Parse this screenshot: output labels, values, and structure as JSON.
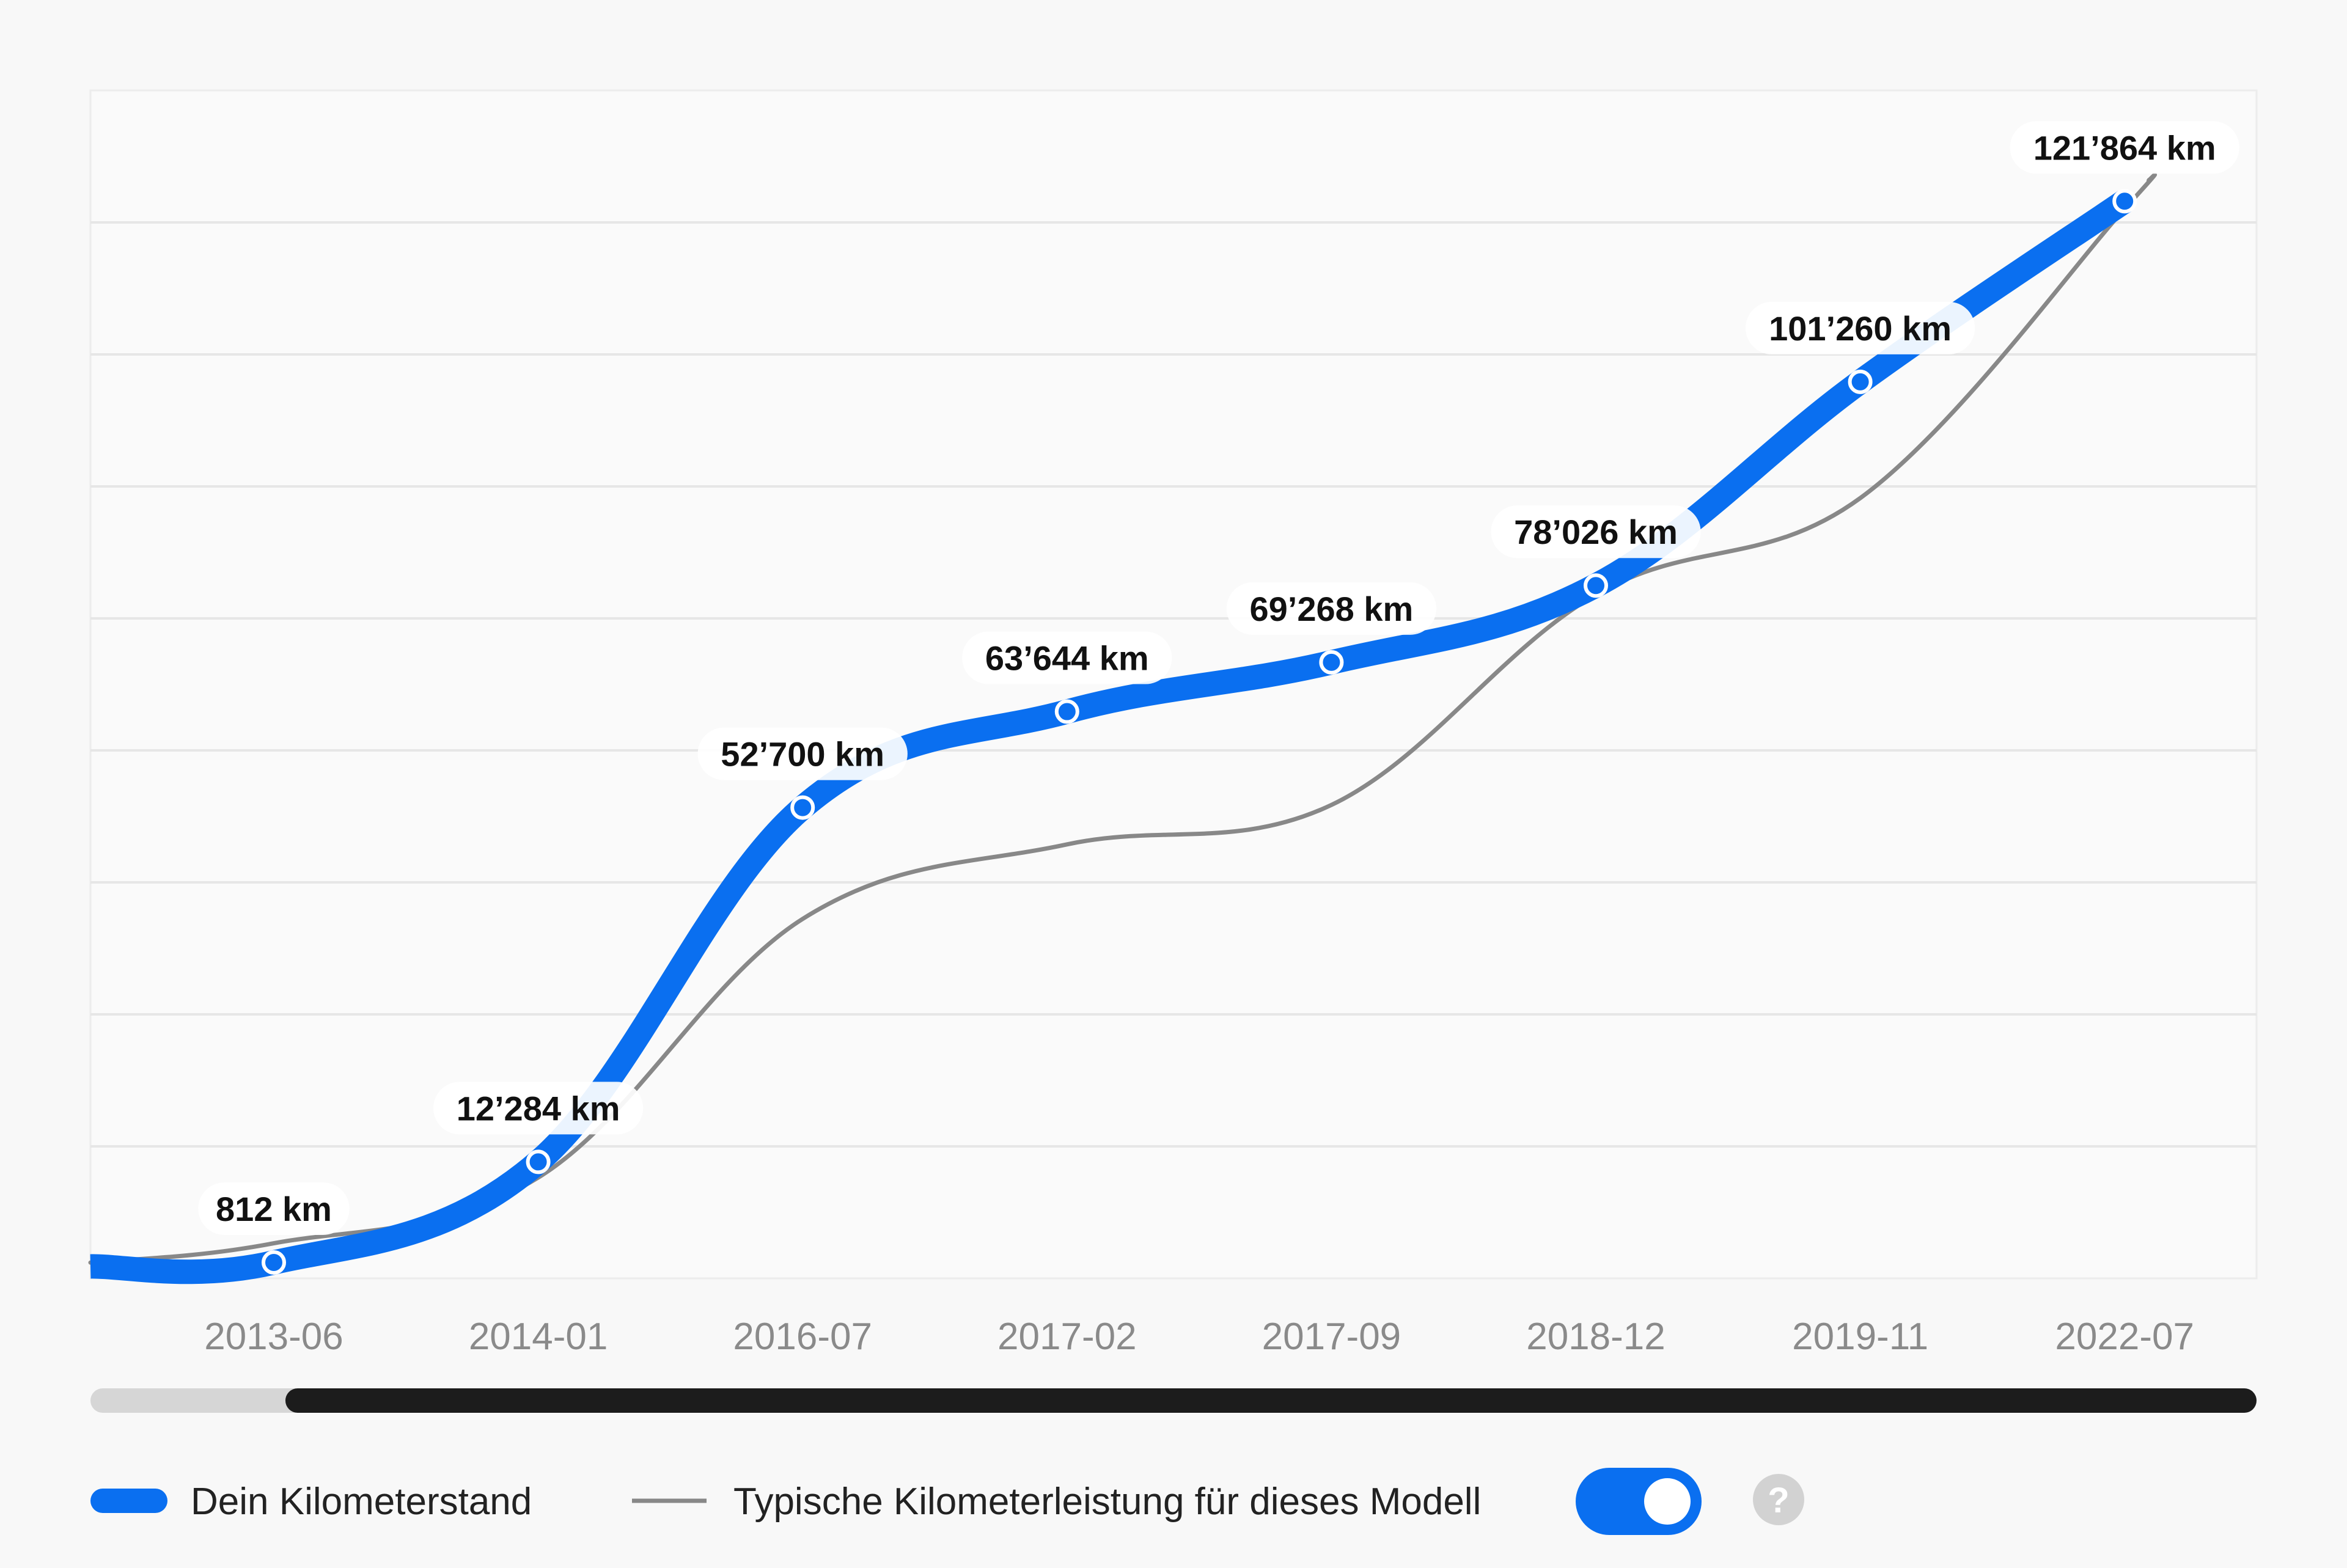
{
  "chart_data": {
    "type": "line",
    "categories": [
      "2013-06",
      "2014-01",
      "2016-07",
      "2017-02",
      "2017-09",
      "2018-12",
      "2019-11",
      "2022-07"
    ],
    "series": [
      {
        "name": "Dein Kilometerstand",
        "color": "#0a6ff0",
        "values": [
          812,
          12284,
          52700,
          63644,
          69268,
          78026,
          101260,
          121864
        ],
        "labels": [
          "812 km",
          "12’284 km",
          "52’700 km",
          "63’644 km",
          "69’268 km",
          "78’026 km",
          "101’260 km",
          "121’864 km"
        ]
      },
      {
        "name": "Typische Kilometerleistung für dieses Modell",
        "color": "#888888",
        "values": [
          3000,
          10500,
          40000,
          48500,
          53000,
          77000,
          88000,
          121000
        ]
      }
    ],
    "ylim": [
      -1000,
      134500
    ],
    "grid": true,
    "legend_position": "bottom-left"
  },
  "controls": {
    "scrollbar": {
      "visible_start": 0.09,
      "visible_end": 1.0
    },
    "toggle": {
      "on": true,
      "color": "#0a6ff0"
    },
    "help": {
      "label": "?",
      "icon": "question-circle-icon"
    }
  }
}
